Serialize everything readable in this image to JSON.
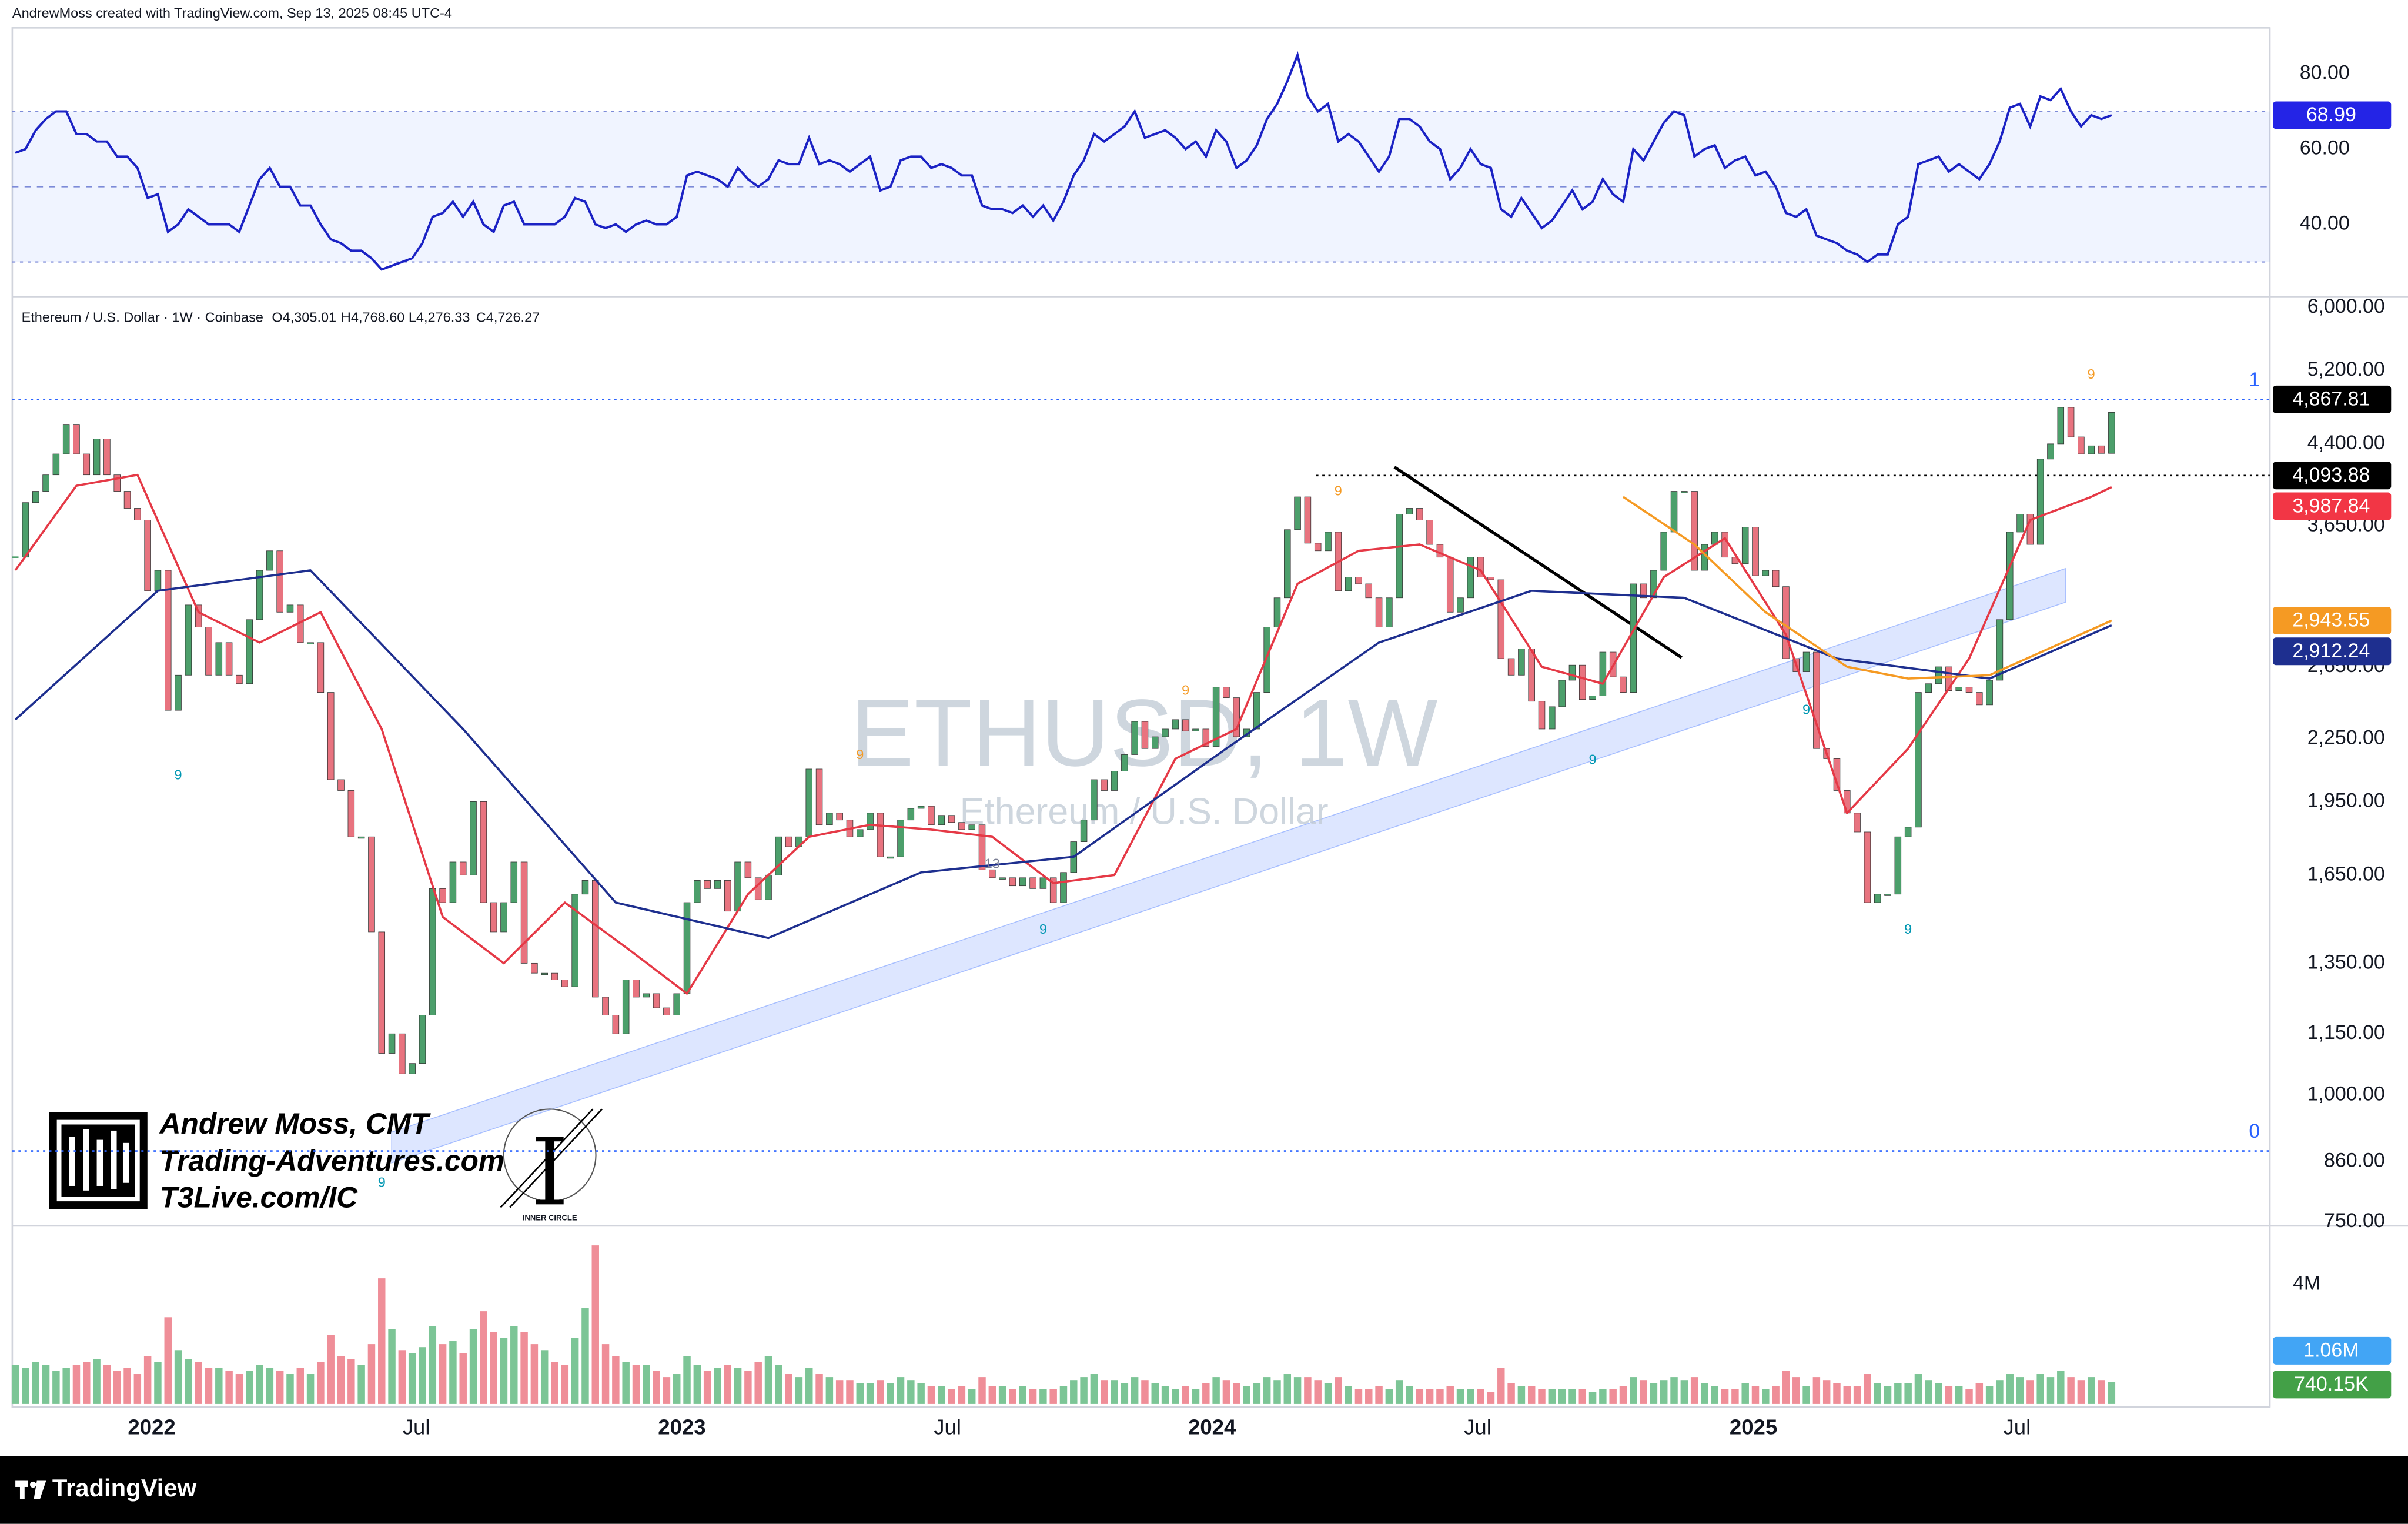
{
  "header": {
    "text": "AndrewMoss created with TradingView.com, Sep 13, 2025 08:45 UTC-4"
  },
  "chart_data": [
    {
      "type": "line",
      "color": "#1b22c4",
      "xlim": [
        0,
        206
      ],
      "ylim": [
        20.8,
        92.2
      ],
      "yticks": [
        {
          "value": 40,
          "label": "40.00"
        },
        {
          "value": 60,
          "label": "60.00"
        },
        {
          "value": 80,
          "label": "80.00"
        }
      ],
      "bands": [
        30,
        50,
        70
      ],
      "values": [
        59,
        60,
        65,
        68,
        70,
        70,
        64,
        64,
        62,
        62,
        58,
        58,
        55,
        47,
        48,
        38,
        40,
        44,
        42,
        40,
        40,
        40,
        38,
        45,
        52,
        55,
        50,
        50,
        45,
        45,
        40,
        36,
        35,
        33,
        33,
        31,
        28,
        29,
        30,
        31,
        35,
        42,
        43,
        46,
        42,
        46,
        40,
        38,
        45,
        46,
        40,
        40,
        40,
        40,
        42,
        47,
        46,
        40,
        39,
        40,
        38,
        40,
        41,
        40,
        40,
        42,
        53,
        54,
        53,
        52,
        50,
        55,
        52,
        50,
        52,
        57,
        56,
        56,
        63,
        56,
        57,
        56,
        54,
        56,
        58,
        49,
        50,
        57,
        58,
        58,
        55,
        56,
        55,
        53,
        53,
        45,
        44,
        44,
        43,
        45,
        42,
        45,
        41,
        46,
        53,
        57,
        64,
        62,
        64,
        66,
        70,
        63,
        64,
        65,
        63,
        60,
        62,
        58,
        65,
        62,
        55,
        57,
        61,
        68,
        72,
        78,
        85,
        74,
        70,
        72,
        62,
        64,
        62,
        58,
        54,
        58,
        68,
        68,
        66,
        62,
        60,
        52,
        55,
        60,
        56,
        55,
        44,
        42,
        47,
        43,
        39,
        41,
        45,
        49,
        44,
        46,
        52,
        48,
        46,
        60,
        57,
        62,
        67,
        70,
        69,
        58,
        60,
        61,
        55,
        57,
        58,
        53,
        54,
        50,
        43,
        42,
        44,
        37,
        36,
        35,
        33,
        32,
        30,
        32,
        32,
        40,
        42,
        56,
        57,
        58,
        54,
        56,
        54,
        52,
        56,
        62,
        71,
        72,
        66,
        74,
        73,
        76,
        70,
        66,
        69,
        68,
        68.99
      ],
      "value_labels": {
        "206": "68.99"
      }
    },
    {
      "type": "candlestick",
      "title": "Ethereum / U.S. Dollar · 1W · Coinbase",
      "ohlc_labels": [
        "O4,305.01",
        "H4,768.60",
        "L4,276.33",
        "C4,726.27"
      ],
      "watermark": "ETHUSD, 1W",
      "watermark_subtitle": "Ethereum / U.S. Dollar",
      "up_color": "#4c9f6b",
      "down_color": "#e8737f",
      "log_scale": true,
      "xlim": [
        0,
        206
      ],
      "ylim": [
        743,
        6150
      ],
      "yticks": [
        {
          "value": 6000,
          "label": "6,000.00"
        },
        {
          "value": 5200,
          "label": "5,200.00"
        },
        {
          "value": 4400,
          "label": "4,400.00"
        },
        {
          "value": 3650,
          "label": "3,650.00"
        },
        {
          "value": 2650,
          "label": "2,650.00"
        },
        {
          "value": 2250,
          "label": "2,250.00"
        },
        {
          "value": 1950,
          "label": "1,950.00"
        },
        {
          "value": 1650,
          "label": "1,650.00"
        },
        {
          "value": 1350,
          "label": "1,350.00"
        },
        {
          "value": 1150,
          "label": "1,150.00"
        },
        {
          "value": 1000,
          "label": "1,000.00"
        },
        {
          "value": 860,
          "label": "860.00"
        },
        {
          "value": 750,
          "label": "750.00"
        }
      ],
      "close": [
        3400,
        3850,
        3950,
        4100,
        4300,
        4600,
        4300,
        4100,
        4450,
        4100,
        3950,
        3800,
        3700,
        3150,
        3300,
        2400,
        2600,
        3050,
        2900,
        2600,
        2800,
        2600,
        2550,
        2950,
        3300,
        3450,
        3000,
        3050,
        2800,
        2800,
        2500,
        2050,
        2000,
        1800,
        1800,
        1450,
        1100,
        1150,
        1050,
        1075,
        1200,
        1600,
        1550,
        1700,
        1650,
        1950,
        1550,
        1450,
        1550,
        1700,
        1350,
        1320,
        1320,
        1300,
        1280,
        1580,
        1630,
        1250,
        1200,
        1150,
        1300,
        1250,
        1260,
        1220,
        1200,
        1260,
        1550,
        1630,
        1600,
        1630,
        1520,
        1700,
        1640,
        1560,
        1650,
        1800,
        1760,
        1800,
        2100,
        1850,
        1900,
        1870,
        1800,
        1830,
        1900,
        1720,
        1720,
        1870,
        1920,
        1930,
        1850,
        1890,
        1860,
        1830,
        1850,
        1670,
        1640,
        1640,
        1610,
        1640,
        1600,
        1640,
        1550,
        1660,
        1780,
        1870,
        2050,
        2000,
        2090,
        2170,
        2340,
        2200,
        2260,
        2300,
        2350,
        2290,
        2300,
        2210,
        2530,
        2470,
        2260,
        2300,
        2500,
        2900,
        3100,
        3620,
        3900,
        3510,
        3450,
        3600,
        3150,
        3250,
        3200,
        3100,
        2900,
        3100,
        3750,
        3800,
        3700,
        3500,
        3400,
        3000,
        3100,
        3400,
        3250,
        3230,
        2700,
        2600,
        2760,
        2450,
        2300,
        2420,
        2570,
        2660,
        2460,
        2480,
        2740,
        2590,
        2500,
        3200,
        3100,
        3300,
        3600,
        3950,
        3950,
        3300,
        3500,
        3600,
        3400,
        3350,
        3640,
        3260,
        3300,
        3180,
        2700,
        2620,
        2740,
        2200,
        2150,
        2000,
        1900,
        1820,
        1550,
        1580,
        1580,
        1800,
        1840,
        2500,
        2550,
        2650,
        2510,
        2530,
        2500,
        2430,
        2570,
        2950,
        3600,
        3750,
        3500,
        4250,
        4400,
        4780,
        4470,
        4300,
        4380,
        4305.01,
        4726.27
      ],
      "overlays": [
        {
          "color": "#e53946",
          "x": [
            0,
            6,
            12,
            18,
            24,
            30,
            36,
            42,
            48,
            54,
            60,
            66,
            72,
            78,
            84,
            90,
            96,
            102,
            108,
            114,
            120,
            126,
            132,
            138,
            144,
            150,
            156,
            162,
            168,
            174,
            180,
            186,
            192,
            198,
            204,
            206
          ],
          "values": [
            3300,
            4000,
            4100,
            3000,
            2800,
            3000,
            2300,
            1500,
            1350,
            1550,
            1400,
            1260,
            1580,
            1800,
            1850,
            1830,
            1800,
            1620,
            1650,
            2150,
            2300,
            3200,
            3450,
            3500,
            3300,
            2650,
            2550,
            3250,
            3550,
            2850,
            1900,
            2200,
            2700,
            3700,
            3900,
            3987.84
          ]
        },
        {
          "color": "#1e2f8f",
          "x": [
            0,
            14,
            29,
            44,
            59,
            74,
            89,
            104,
            119,
            134,
            149,
            164,
            179,
            194,
            206
          ],
          "values": [
            2350,
            3150,
            3300,
            2300,
            1550,
            1430,
            1660,
            1720,
            2200,
            2800,
            3150,
            3100,
            2700,
            2580,
            2912.24
          ]
        },
        {
          "color": "#f59a23",
          "x": [
            158,
            165,
            172,
            180,
            186,
            194,
            206
          ],
          "values": [
            3900,
            3500,
            3000,
            2650,
            2580,
            2600,
            2943.55
          ]
        }
      ],
      "levels": [
        {
          "value": 4867.81,
          "label": "1",
          "color": "#2962ff"
        },
        {
          "value": 881,
          "label": "0",
          "color": "#2962ff"
        },
        {
          "value": 4093.88,
          "color": "#000000"
        }
      ],
      "price_labels": [
        {
          "value": 4867.81,
          "label": "4,867.81",
          "color": "#000000"
        },
        {
          "value": 4093.88,
          "label": "4,093.88",
          "color": "#000000"
        },
        {
          "value": 3987.84,
          "label": "3,987.84",
          "color": "#f23645"
        },
        {
          "value": 2943.55,
          "label": "2,943.55",
          "color": "#f59a23"
        },
        {
          "value": 2912.24,
          "label": "2,912.24",
          "color": "#1e2f8f"
        }
      ],
      "td_markers": [
        {
          "x": 16,
          "y": 2068,
          "label": "9",
          "color": "#0097b2"
        },
        {
          "x": 36,
          "y": 819,
          "label": "9",
          "color": "#0097b2"
        },
        {
          "x": 101,
          "y": 1456,
          "label": "9",
          "color": "#0097b2"
        },
        {
          "x": 155,
          "y": 2142,
          "label": "9",
          "color": "#0097b2"
        },
        {
          "x": 176,
          "y": 2400,
          "label": "9",
          "color": "#0097b2"
        },
        {
          "x": 186,
          "y": 1456,
          "label": "9",
          "color": "#0097b2"
        },
        {
          "x": 83,
          "y": 2166,
          "label": "9",
          "color": "#f59a23"
        },
        {
          "x": 115,
          "y": 2508,
          "label": "9",
          "color": "#f59a23"
        },
        {
          "x": 130,
          "y": 3945,
          "label": "9",
          "color": "#f59a23"
        },
        {
          "x": 204,
          "y": 5146,
          "label": "9",
          "color": "#f59a23"
        },
        {
          "x": 96,
          "y": 1690,
          "label": "13",
          "color": "#7b7f94"
        }
      ]
    },
    {
      "type": "bar",
      "up_color": "#7cc596",
      "down_color": "#ef8e98",
      "xlim": [
        0,
        206
      ],
      "ylim": [
        0,
        5.85
      ],
      "yticks": [
        {
          "value": 4,
          "label": "4M"
        }
      ],
      "xticks": [
        {
          "value": 13.4,
          "label": "2022"
        },
        {
          "value": 39.4,
          "label": "Jul"
        },
        {
          "value": 65.5,
          "label": "2023"
        },
        {
          "value": 91.6,
          "label": "Jul"
        },
        {
          "value": 117.6,
          "label": "2024"
        },
        {
          "value": 143.7,
          "label": "Jul"
        },
        {
          "value": 170.8,
          "label": "2025"
        },
        {
          "value": 196.7,
          "label": "Jul"
        }
      ],
      "values": [
        1.3,
        1.2,
        1.4,
        1.3,
        1.1,
        1.2,
        1.3,
        1.4,
        1.5,
        1.3,
        1.1,
        1.2,
        1.0,
        1.6,
        1.4,
        2.9,
        1.8,
        1.5,
        1.4,
        1.2,
        1.2,
        1.1,
        1.0,
        1.1,
        1.3,
        1.2,
        1.1,
        1.0,
        1.2,
        1.0,
        1.4,
        2.3,
        1.6,
        1.5,
        1.3,
        2.0,
        4.2,
        2.5,
        1.8,
        1.7,
        1.9,
        2.6,
        2.0,
        2.1,
        1.7,
        2.5,
        3.1,
        2.4,
        2.2,
        2.6,
        2.4,
        2.0,
        1.8,
        1.4,
        1.3,
        2.2,
        3.2,
        5.3,
        2.0,
        1.6,
        1.4,
        1.3,
        1.3,
        1.1,
        0.9,
        1.0,
        1.6,
        1.3,
        1.1,
        1.2,
        1.3,
        1.2,
        1.1,
        1.4,
        1.6,
        1.3,
        1.0,
        0.9,
        1.2,
        1.0,
        0.9,
        0.8,
        0.8,
        0.7,
        0.7,
        0.8,
        0.7,
        0.9,
        0.8,
        0.7,
        0.6,
        0.6,
        0.5,
        0.6,
        0.5,
        0.9,
        0.6,
        0.6,
        0.5,
        0.6,
        0.5,
        0.5,
        0.5,
        0.6,
        0.8,
        0.9,
        1.0,
        0.8,
        0.8,
        0.7,
        0.9,
        0.8,
        0.7,
        0.6,
        0.5,
        0.6,
        0.5,
        0.7,
        0.9,
        0.8,
        0.7,
        0.6,
        0.7,
        0.9,
        0.8,
        1.0,
        0.9,
        0.9,
        0.8,
        0.7,
        0.9,
        0.6,
        0.5,
        0.5,
        0.6,
        0.5,
        0.8,
        0.6,
        0.5,
        0.5,
        0.5,
        0.6,
        0.5,
        0.5,
        0.5,
        0.4,
        1.2,
        0.7,
        0.6,
        0.6,
        0.5,
        0.5,
        0.5,
        0.5,
        0.5,
        0.4,
        0.5,
        0.5,
        0.6,
        0.9,
        0.8,
        0.7,
        0.8,
        0.9,
        0.8,
        0.9,
        0.7,
        0.6,
        0.5,
        0.5,
        0.7,
        0.6,
        0.5,
        0.6,
        1.1,
        0.9,
        0.6,
        0.9,
        0.8,
        0.7,
        0.6,
        0.6,
        1.0,
        0.7,
        0.6,
        0.7,
        0.7,
        1.0,
        0.8,
        0.7,
        0.6,
        0.6,
        0.5,
        0.7,
        0.6,
        0.8,
        1.0,
        0.9,
        0.8,
        1.0,
        0.9,
        1.1,
        0.9,
        0.8,
        0.9,
        0.8,
        0.74015
      ],
      "last_labels": [
        {
          "value": 1.06,
          "label": "1.06M",
          "color": "#42a5f5"
        },
        {
          "value": 0.74015,
          "label": "740.15K",
          "color": "#43a047"
        }
      ]
    }
  ],
  "branding": {
    "lines": [
      "Andrew Moss, CMT",
      "Trading-Adventures.com",
      "T3Live.com/IC"
    ],
    "badge": "INNER CIRCLE"
  },
  "footer": {
    "text": "TradingView"
  }
}
